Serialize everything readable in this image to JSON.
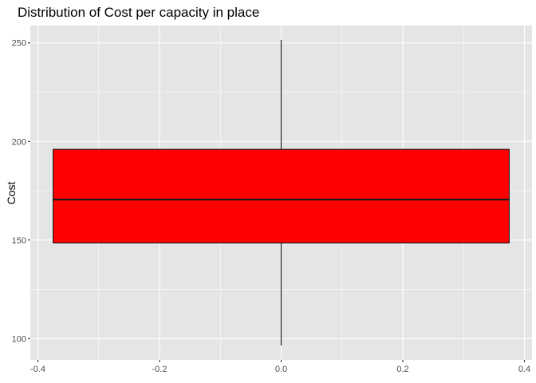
{
  "chart_data": {
    "type": "boxplot",
    "title": "Distribution of Cost per capacity in place",
    "xlabel": "",
    "ylabel": "Cost",
    "xlim": [
      -0.4125,
      0.4125
    ],
    "ylim": [
      89.2,
      258.8
    ],
    "x_ticks": [
      -0.4,
      -0.2,
      0.0,
      0.2,
      0.4
    ],
    "x_tick_labels": [
      "-0.4",
      "-0.2",
      "0.0",
      "0.2",
      "0.4"
    ],
    "y_ticks": [
      100,
      150,
      200,
      250
    ],
    "y_tick_labels": [
      "100",
      "150",
      "200",
      "250"
    ],
    "box": {
      "x_center": 0.0,
      "x_half_width": 0.375,
      "whisker_low": 96.5,
      "q1": 148.5,
      "median": 170.5,
      "q3": 196,
      "whisker_high": 251.5,
      "fill": "#ff0000",
      "stroke": "#1a1a1a"
    },
    "panel_background": "#e5e5e5",
    "grid": true,
    "grid_color": "#ffffff",
    "legend": "none"
  }
}
